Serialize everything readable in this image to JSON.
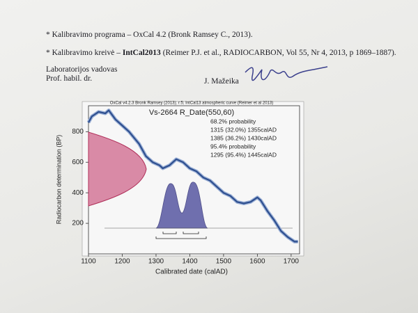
{
  "document": {
    "notes": [
      {
        "text": "* Kalibravimo programa – OxCal 4.2 (Bronk Ramsey C., 2013)."
      },
      {
        "prefix": "* Kalibravimo kreivė – ",
        "bold": "IntCal2013",
        "suffix": " (Reimer P.J. et al., RADIOCARBON, Vol 55, Nr 4, 2013, p 1869–1887)."
      }
    ],
    "signer": {
      "role": "Laboratorijos vadovas",
      "title": "Prof. habil. dr.",
      "name": "J. Mažeika"
    }
  },
  "chart_data": {
    "type": "line",
    "subtitle": "OxCal v4.2.3 Bronk Ramsey (2013); r:5; IntCal13 atmospheric curve (Reimer et al 2013)",
    "title": "Vs-2664 R_Date(550,60)",
    "annotations": [
      "68.2% probability",
      "1315 (32.0%) 1355calAD",
      "1385 (36.2%) 1430calAD",
      "95.4% probability",
      "1295 (95.4%) 1445calAD"
    ],
    "xlabel": "Calibrated date (calAD)",
    "ylabel": "Radiocarbon determination (BP)",
    "x": [
      1100,
      1110,
      1130,
      1150,
      1160,
      1180,
      1200,
      1220,
      1250,
      1270,
      1290,
      1310,
      1320,
      1340,
      1360,
      1380,
      1400,
      1420,
      1440,
      1460,
      1480,
      1500,
      1520,
      1540,
      1560,
      1580,
      1600,
      1610,
      1630,
      1650,
      1670,
      1690,
      1710,
      1720
    ],
    "values": [
      860,
      900,
      930,
      920,
      940,
      880,
      840,
      800,
      720,
      640,
      600,
      580,
      560,
      580,
      620,
      600,
      560,
      540,
      500,
      480,
      440,
      400,
      380,
      340,
      330,
      340,
      370,
      350,
      280,
      220,
      150,
      110,
      80,
      80
    ],
    "color": "#2e4f8f",
    "xlim": [
      1100,
      1725
    ],
    "ylim": [
      0,
      970
    ],
    "xticks": [
      1100,
      1200,
      1300,
      1400,
      1500,
      1600,
      1700
    ],
    "yticks": [
      200,
      400,
      600,
      800
    ]
  }
}
